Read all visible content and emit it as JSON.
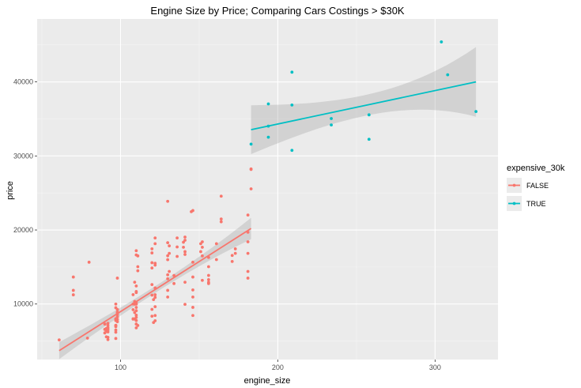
{
  "chart_data": {
    "type": "scatter",
    "title": "Engine Size by Price; Comparing Cars Costings > $30K",
    "xlabel": "engine_size",
    "ylabel": "price",
    "xlim": [
      47,
      340
    ],
    "ylim": [
      2500,
      48500
    ],
    "x_ticks": [
      100,
      200,
      300
    ],
    "y_ticks": [
      10000,
      20000,
      30000,
      40000
    ],
    "grid": true,
    "legend": {
      "title": "expensive_30k",
      "placement": "right",
      "entries": [
        "FALSE",
        "TRUE"
      ]
    },
    "series": [
      {
        "name": "FALSE",
        "color": "#F8766D",
        "points": [
          [
            61,
            5151
          ],
          [
            70,
            13645
          ],
          [
            70,
            11845
          ],
          [
            70,
            11245
          ],
          [
            79,
            5399
          ],
          [
            80,
            15645
          ],
          [
            90,
            6095
          ],
          [
            90,
            6575
          ],
          [
            90,
            7295
          ],
          [
            91,
            6695
          ],
          [
            91,
            6295
          ],
          [
            91,
            5572
          ],
          [
            91,
            6377
          ],
          [
            92,
            5499
          ],
          [
            92,
            6229
          ],
          [
            92,
            7129
          ],
          [
            92,
            6479
          ],
          [
            92,
            6855
          ],
          [
            92,
            5195
          ],
          [
            92,
            6669
          ],
          [
            92,
            7395
          ],
          [
            97,
            7126
          ],
          [
            97,
            7775
          ],
          [
            97,
            9495
          ],
          [
            97,
            9995
          ],
          [
            97,
            8013
          ],
          [
            97,
            7099
          ],
          [
            97,
            6189
          ],
          [
            97,
            6938
          ],
          [
            97,
            5348
          ],
          [
            97,
            6488
          ],
          [
            97,
            7975
          ],
          [
            98,
            8249
          ],
          [
            98,
            8558
          ],
          [
            98,
            7609
          ],
          [
            98,
            13499
          ],
          [
            98,
            9258
          ],
          [
            98,
            8921
          ],
          [
            98,
            7898
          ],
          [
            98,
            8778
          ],
          [
            108,
            8013
          ],
          [
            108,
            9995
          ],
          [
            108,
            7957
          ],
          [
            108,
            9233
          ],
          [
            108,
            11259
          ],
          [
            109,
            8845
          ],
          [
            109,
            10295
          ],
          [
            109,
            12945
          ],
          [
            109,
            10345
          ],
          [
            109,
            7975
          ],
          [
            109,
            9980
          ],
          [
            110,
            6785
          ],
          [
            110,
            7775
          ],
          [
            110,
            8195
          ],
          [
            110,
            8495
          ],
          [
            110,
            9095
          ],
          [
            110,
            9538
          ],
          [
            110,
            9989
          ],
          [
            110,
            11549
          ],
          [
            110,
            16630
          ],
          [
            110,
            17199
          ],
          [
            110,
            7295
          ],
          [
            110,
            12440
          ],
          [
            110,
            10198
          ],
          [
            110,
            11694
          ],
          [
            111,
            7099
          ],
          [
            111,
            15040
          ],
          [
            111,
            14489
          ],
          [
            111,
            16500
          ],
          [
            120,
            8358
          ],
          [
            120,
            9279
          ],
          [
            120,
            11199
          ],
          [
            120,
            12629
          ],
          [
            120,
            14869
          ],
          [
            120,
            15580
          ],
          [
            120,
            16900
          ],
          [
            120,
            17450
          ],
          [
            121,
            7499
          ],
          [
            121,
            10595
          ],
          [
            122,
            8449
          ],
          [
            122,
            9639
          ],
          [
            122,
            10898
          ],
          [
            122,
            11248
          ],
          [
            122,
            7738
          ],
          [
            122,
            12170
          ],
          [
            122,
            15250
          ],
          [
            122,
            15510
          ],
          [
            122,
            18150
          ],
          [
            122,
            18920
          ],
          [
            130,
            10945
          ],
          [
            130,
            11845
          ],
          [
            130,
            13415
          ],
          [
            130,
            15985
          ],
          [
            130,
            16515
          ],
          [
            130,
            18280
          ],
          [
            130,
            13950
          ],
          [
            130,
            23875
          ],
          [
            131,
            17859
          ],
          [
            131,
            14399
          ],
          [
            131,
            16845
          ],
          [
            134,
            12764
          ],
          [
            134,
            13845
          ],
          [
            136,
            17710
          ],
          [
            136,
            18920
          ],
          [
            136,
            16430
          ],
          [
            140,
            17669
          ],
          [
            140,
            18344
          ],
          [
            141,
            9960
          ],
          [
            141,
            12940
          ],
          [
            141,
            18620
          ],
          [
            141,
            17075
          ],
          [
            141,
            16695
          ],
          [
            141,
            19045
          ],
          [
            145,
            22470
          ],
          [
            146,
            11900
          ],
          [
            146,
            13645
          ],
          [
            146,
            15645
          ],
          [
            146,
            8449
          ],
          [
            146,
            9549
          ],
          [
            146,
            10945
          ],
          [
            146,
            22625
          ],
          [
            151,
            17075
          ],
          [
            151,
            18150
          ],
          [
            152,
            13200
          ],
          [
            152,
            16500
          ],
          [
            152,
            17669
          ],
          [
            152,
            18399
          ],
          [
            156,
            12764
          ],
          [
            156,
            13295
          ],
          [
            156,
            12940
          ],
          [
            156,
            13860
          ],
          [
            156,
            15040
          ],
          [
            156,
            16298
          ],
          [
            161,
            18150
          ],
          [
            161,
            15998
          ],
          [
            164,
            21105
          ],
          [
            164,
            24565
          ],
          [
            164,
            21485
          ],
          [
            171,
            15750
          ],
          [
            171,
            16558
          ],
          [
            173,
            16845
          ],
          [
            173,
            17450
          ],
          [
            181,
            13499
          ],
          [
            181,
            14399
          ],
          [
            181,
            16845
          ],
          [
            181,
            18399
          ],
          [
            181,
            19699
          ],
          [
            181,
            22018
          ],
          [
            183,
            25552
          ],
          [
            183,
            28176
          ],
          [
            183,
            28248
          ]
        ]
      },
      {
        "name": "TRUE",
        "color": "#00BFC4",
        "points": [
          [
            183,
            31600
          ],
          [
            194,
            32528
          ],
          [
            194,
            34028
          ],
          [
            194,
            37028
          ],
          [
            209,
            30760
          ],
          [
            209,
            36880
          ],
          [
            209,
            41315
          ],
          [
            234,
            34184
          ],
          [
            234,
            35056
          ],
          [
            258,
            35550
          ],
          [
            258,
            32250
          ],
          [
            304,
            45400
          ],
          [
            308,
            40960
          ],
          [
            326,
            36000
          ]
        ]
      }
    ],
    "fits": [
      {
        "name": "FALSE",
        "x_start": 61,
        "x_end": 183,
        "y_start": 3700,
        "y_end": 20200,
        "se_start": 1150,
        "se_end": 1450,
        "se_mid": 450
      },
      {
        "name": "TRUE",
        "x_start": 183,
        "x_end": 326,
        "y_start": 33550,
        "y_end": 40000,
        "se_start": 3300,
        "se_end": 4700,
        "se_mid": 1400
      }
    ]
  }
}
